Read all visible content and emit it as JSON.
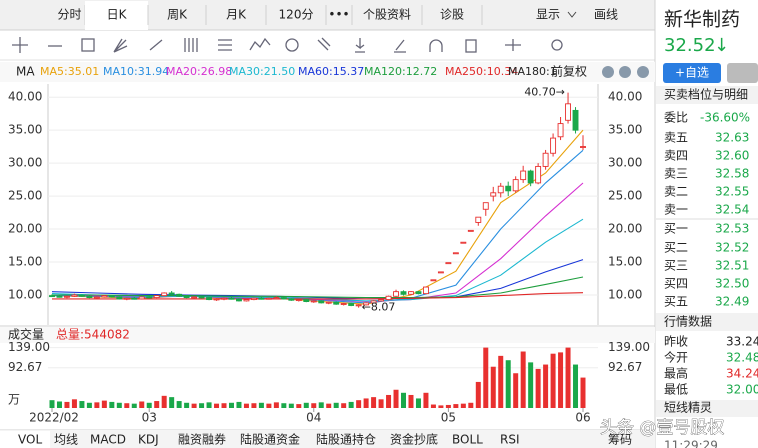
{
  "toolbar": {
    "tabs": [
      "分时",
      "日K",
      "周K",
      "月K",
      "120分",
      "•••",
      "个股资料",
      "诊股"
    ],
    "active": 1,
    "display": "显示",
    "draw": "画线"
  },
  "stock": {
    "name": "新华制药",
    "price": "32.52",
    "arrow": "↓",
    "watchlist": "+自选"
  },
  "ma_legend": {
    "label": "MA",
    "adjust": "前复权",
    "items": [
      {
        "text": "MA5:35.01",
        "color": "#e8a20c"
      },
      {
        "text": "MA10:31.94",
        "color": "#2a8fe0"
      },
      {
        "text": "MA20:26.98",
        "color": "#d52fd1"
      },
      {
        "text": "MA30:21.50",
        "color": "#1cb8d0"
      },
      {
        "text": "MA60:15.37",
        "color": "#1836d8"
      },
      {
        "text": "MA120:12.72",
        "color": "#1e9e3e"
      },
      {
        "text": "MA250:10.34",
        "color": "#e02828"
      },
      {
        "text": "MA180:1",
        "color": "#222222"
      }
    ]
  },
  "price_chart": {
    "type": "candlestick",
    "up_color": "#e8302f",
    "down_color": "#1aa84a",
    "ylim": [
      6.2,
      41.4
    ],
    "yticks": [
      {
        "value": 40,
        "label": "40.00"
      },
      {
        "value": 35,
        "label": "35.00"
      },
      {
        "value": 30,
        "label": "30.00"
      },
      {
        "value": 25,
        "label": "25.00"
      },
      {
        "value": 20,
        "label": "20.00"
      },
      {
        "value": 15,
        "label": "15.00"
      },
      {
        "value": 10,
        "label": "10.00"
      }
    ],
    "xlim": [
      0,
      71
    ],
    "xticks": [
      {
        "value": 0,
        "label": "2022/02"
      },
      {
        "value": 13,
        "label": "03"
      },
      {
        "value": 35,
        "label": "04"
      },
      {
        "value": 53,
        "label": "05"
      },
      {
        "value": 71,
        "label": "06"
      }
    ],
    "candles": [
      [
        9.9,
        10.1,
        9.7,
        9.8
      ],
      [
        9.8,
        10.0,
        9.6,
        9.7
      ],
      [
        9.7,
        9.9,
        9.5,
        9.8
      ],
      [
        9.8,
        10.2,
        9.7,
        10.0
      ],
      [
        10.0,
        10.1,
        9.7,
        9.8
      ],
      [
        9.8,
        9.9,
        9.5,
        9.6
      ],
      [
        9.6,
        9.8,
        9.4,
        9.7
      ],
      [
        9.7,
        10.0,
        9.6,
        9.9
      ],
      [
        9.9,
        10.0,
        9.6,
        9.7
      ],
      [
        9.7,
        9.8,
        9.3,
        9.4
      ],
      [
        9.4,
        9.6,
        9.2,
        9.5
      ],
      [
        9.5,
        9.7,
        9.3,
        9.4
      ],
      [
        9.4,
        9.8,
        9.3,
        9.7
      ],
      [
        9.7,
        9.9,
        9.5,
        9.6
      ],
      [
        9.6,
        10.0,
        9.5,
        9.9
      ],
      [
        9.9,
        10.4,
        9.8,
        10.3
      ],
      [
        10.3,
        10.6,
        10.0,
        10.1
      ],
      [
        10.1,
        10.2,
        9.7,
        9.8
      ],
      [
        9.8,
        9.9,
        9.5,
        9.6
      ],
      [
        9.6,
        9.8,
        9.4,
        9.7
      ],
      [
        9.7,
        9.9,
        9.5,
        9.6
      ],
      [
        9.6,
        9.7,
        9.2,
        9.3
      ],
      [
        9.3,
        9.5,
        9.1,
        9.4
      ],
      [
        9.4,
        9.6,
        9.2,
        9.5
      ],
      [
        9.5,
        9.7,
        9.3,
        9.4
      ],
      [
        9.4,
        9.5,
        9.0,
        9.1
      ],
      [
        9.1,
        9.4,
        9.0,
        9.3
      ],
      [
        9.3,
        9.6,
        9.2,
        9.5
      ],
      [
        9.5,
        9.7,
        9.3,
        9.4
      ],
      [
        9.4,
        9.6,
        9.3,
        9.5
      ],
      [
        9.5,
        9.8,
        9.4,
        9.6
      ],
      [
        9.6,
        9.7,
        9.3,
        9.4
      ],
      [
        9.4,
        9.5,
        9.1,
        9.2
      ],
      [
        9.2,
        9.4,
        9.0,
        9.3
      ],
      [
        9.3,
        9.4,
        8.9,
        9.0
      ],
      [
        9.0,
        9.2,
        8.8,
        9.1
      ],
      [
        9.1,
        9.2,
        8.7,
        8.8
      ],
      [
        8.8,
        9.0,
        8.6,
        8.9
      ],
      [
        8.9,
        9.0,
        8.5,
        8.6
      ],
      [
        8.6,
        8.8,
        8.4,
        8.7
      ],
      [
        8.7,
        8.8,
        8.3,
        8.4
      ],
      [
        8.4,
        8.6,
        8.07,
        8.5
      ],
      [
        8.5,
        8.9,
        8.4,
        8.8
      ],
      [
        8.8,
        9.2,
        8.7,
        9.1
      ],
      [
        9.1,
        9.4,
        9.0,
        9.3
      ],
      [
        9.3,
        9.9,
        9.2,
        9.8
      ],
      [
        9.8,
        10.8,
        9.7,
        10.5
      ],
      [
        10.5,
        10.7,
        9.9,
        10.1
      ],
      [
        10.1,
        10.6,
        10.0,
        10.5
      ],
      [
        10.5,
        10.6,
        10.1,
        10.2
      ],
      [
        10.2,
        11.2,
        10.2,
        11.2
      ],
      [
        12.3,
        12.3,
        12.3,
        12.3
      ],
      [
        13.5,
        13.5,
        13.5,
        13.5
      ],
      [
        14.9,
        14.9,
        14.9,
        14.9
      ],
      [
        16.4,
        16.4,
        16.4,
        16.4
      ],
      [
        18.0,
        18.0,
        18.0,
        18.0
      ],
      [
        19.8,
        19.8,
        19.8,
        19.8
      ],
      [
        21.0,
        21.8,
        20.5,
        21.8
      ],
      [
        23.0,
        24.0,
        22.0,
        24.0
      ],
      [
        25.0,
        26.4,
        24.2,
        25.5
      ],
      [
        25.5,
        27.0,
        24.8,
        26.5
      ],
      [
        26.5,
        27.2,
        25.0,
        25.8
      ],
      [
        25.8,
        28.0,
        25.5,
        27.5
      ],
      [
        27.5,
        29.6,
        27.0,
        28.8
      ],
      [
        28.8,
        29.0,
        26.5,
        27.0
      ],
      [
        27.0,
        30.0,
        26.8,
        29.5
      ],
      [
        29.5,
        32.0,
        29.0,
        31.5
      ],
      [
        31.5,
        34.5,
        31.0,
        33.8
      ],
      [
        34.0,
        37.0,
        33.5,
        36.0
      ],
      [
        36.5,
        40.7,
        36.0,
        39.0
      ],
      [
        38.0,
        38.5,
        34.5,
        35.0
      ],
      [
        32.48,
        34.24,
        32.0,
        32.52
      ]
    ],
    "ma_x": [
      0,
      6,
      12,
      18,
      24,
      30,
      36,
      42,
      48,
      54,
      60,
      66,
      71
    ],
    "ma_series": [
      {
        "color": "#e8a20c",
        "values": [
          9.9,
          9.7,
          9.5,
          9.9,
          9.4,
          9.5,
          9.0,
          8.6,
          10.0,
          13.6,
          24.0,
          28.5,
          35.01
        ]
      },
      {
        "color": "#2a8fe0",
        "values": [
          9.9,
          9.8,
          9.6,
          9.9,
          9.5,
          9.5,
          9.2,
          8.8,
          9.5,
          11.5,
          20.0,
          27.0,
          31.94
        ]
      },
      {
        "color": "#d52fd1",
        "values": [
          10.0,
          9.9,
          9.7,
          9.8,
          9.6,
          9.5,
          9.3,
          9.0,
          9.3,
          10.3,
          15.5,
          22.0,
          26.98
        ]
      },
      {
        "color": "#1cb8d0",
        "values": [
          10.2,
          10.0,
          9.8,
          9.8,
          9.7,
          9.6,
          9.4,
          9.1,
          9.3,
          9.9,
          13.0,
          18.0,
          21.5
        ]
      },
      {
        "color": "#1836d8",
        "values": [
          10.5,
          10.3,
          10.1,
          10.0,
          9.9,
          9.8,
          9.6,
          9.4,
          9.5,
          9.7,
          11.0,
          13.5,
          15.37
        ]
      },
      {
        "color": "#1e9e3e",
        "values": [
          10.0,
          10.0,
          9.9,
          9.9,
          9.8,
          9.8,
          9.7,
          9.6,
          9.6,
          9.7,
          10.3,
          11.6,
          12.72
        ]
      },
      {
        "color": "#e02828",
        "values": [
          9.4,
          9.4,
          9.4,
          9.4,
          9.4,
          9.4,
          9.4,
          9.4,
          9.5,
          9.6,
          9.9,
          10.2,
          10.34
        ]
      }
    ],
    "annotations": [
      {
        "text": "40.70→",
        "index": 69,
        "value": 40.7,
        "side": "left"
      },
      {
        "text": "←8.07",
        "index": 41,
        "value": 8.07,
        "side": "right"
      }
    ]
  },
  "volume_chart": {
    "type": "bar",
    "title": "成交量",
    "total": "总量:544082",
    "unit": "万",
    "ylim": [
      0,
      145
    ],
    "yticks": [
      {
        "value": 139,
        "label": "139.00"
      },
      92.67
    ],
    "values": [
      18,
      15,
      14,
      20,
      16,
      12,
      13,
      17,
      14,
      12,
      11,
      10,
      15,
      12,
      16,
      28,
      25,
      16,
      12,
      10,
      11,
      13,
      10,
      11,
      12,
      14,
      10,
      11,
      12,
      10,
      13,
      11,
      10,
      9,
      12,
      11,
      13,
      10,
      12,
      11,
      14,
      18,
      22,
      25,
      20,
      30,
      42,
      35,
      30,
      22,
      35,
      8,
      6,
      7,
      9,
      10,
      12,
      60,
      139,
      95,
      120,
      110,
      80,
      130,
      105,
      90,
      100,
      125,
      128,
      139,
      100,
      70
    ]
  },
  "bottom_tabs": [
    "VOL",
    "均线",
    "MACD",
    "KDJ",
    "融资融券",
    "陆股通资金",
    "陆股通持仓",
    "资金抄底",
    "BOLL",
    "RSI"
  ],
  "chips": "筹码",
  "order_book": {
    "title": "买卖档位与明细",
    "ratio_label": "委比",
    "ratio": "-36.60%",
    "levels": [
      [
        "卖五",
        "32.63"
      ],
      [
        "卖四",
        "32.60"
      ],
      [
        "卖三",
        "32.58"
      ],
      [
        "卖二",
        "32.55"
      ],
      [
        "卖一",
        "32.54"
      ],
      [
        "买一",
        "32.53"
      ],
      [
        "买二",
        "32.52"
      ],
      [
        "买三",
        "32.51"
      ],
      [
        "买四",
        "32.50"
      ],
      [
        "买五",
        "32.49"
      ]
    ]
  },
  "quote": {
    "title": "行情数据",
    "rows": [
      [
        "昨收",
        "33.24"
      ],
      [
        "今开",
        "32.48"
      ],
      [
        "最高",
        "34.24"
      ],
      [
        "最低",
        "32.00"
      ]
    ]
  },
  "short_term": "短线精灵",
  "time": "11:29:29",
  "watermark": "头条 @壹号股权"
}
